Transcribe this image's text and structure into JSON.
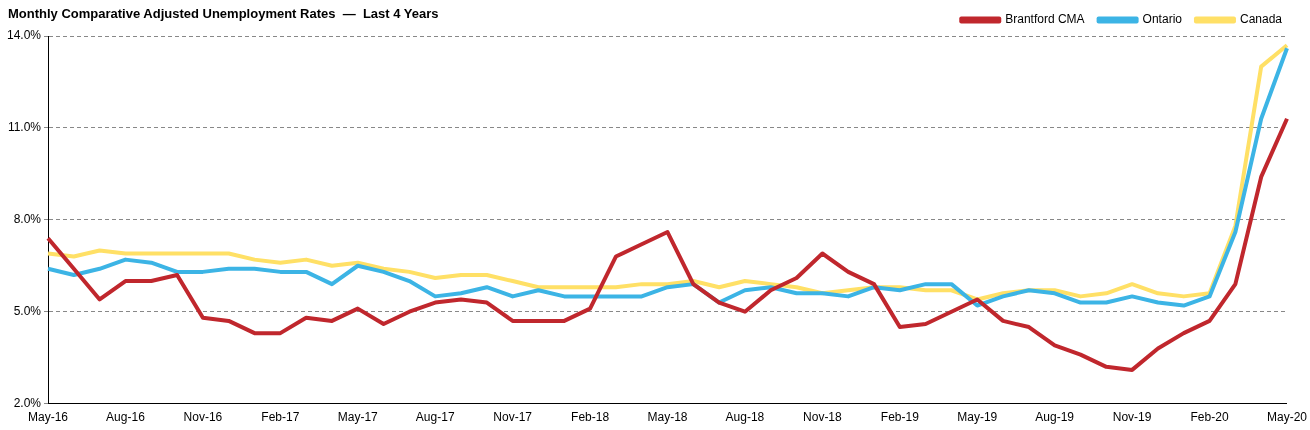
{
  "chart_data": {
    "type": "line",
    "title": "Monthly Comparative Adjusted Unemployment Rates  —  Last 4 Years",
    "categories": [
      "May-16",
      null,
      null,
      "Aug-16",
      null,
      null,
      "Nov-16",
      null,
      null,
      "Feb-17",
      null,
      null,
      "May-17",
      null,
      null,
      "Aug-17",
      null,
      null,
      "Nov-17",
      null,
      null,
      "Feb-18",
      null,
      null,
      "May-18",
      null,
      null,
      "Aug-18",
      null,
      null,
      "Nov-18",
      null,
      null,
      "Feb-19",
      null,
      null,
      "May-19",
      null,
      null,
      "Aug-19",
      null,
      null,
      "Nov-19",
      null,
      null,
      "Feb-20",
      null,
      null,
      "May-20"
    ],
    "series": [
      {
        "name": "Brantford CMA",
        "color": "#c0272d",
        "values": [
          7.4,
          6.4,
          5.4,
          6.0,
          6.0,
          6.2,
          4.8,
          4.7,
          4.3,
          4.3,
          4.8,
          4.7,
          5.1,
          4.6,
          5.0,
          5.3,
          5.4,
          5.3,
          4.7,
          4.7,
          4.7,
          5.1,
          6.8,
          7.2,
          7.6,
          5.9,
          5.3,
          5.0,
          5.7,
          6.1,
          6.9,
          6.3,
          5.9,
          4.5,
          4.6,
          5.0,
          5.4,
          4.7,
          4.5,
          3.9,
          3.6,
          3.2,
          3.1,
          3.8,
          4.3,
          4.7,
          5.9,
          9.4,
          11.3
        ]
      },
      {
        "name": "Ontario",
        "color": "#3cb4e5",
        "values": [
          6.4,
          6.2,
          6.4,
          6.7,
          6.6,
          6.3,
          6.3,
          6.4,
          6.4,
          6.3,
          6.3,
          5.9,
          6.5,
          6.3,
          6.0,
          5.5,
          5.6,
          5.8,
          5.5,
          5.7,
          5.5,
          5.5,
          5.5,
          5.5,
          5.8,
          5.9,
          5.3,
          5.7,
          5.8,
          5.6,
          5.6,
          5.5,
          5.8,
          5.7,
          5.9,
          5.9,
          5.2,
          5.5,
          5.7,
          5.6,
          5.3,
          5.3,
          5.5,
          5.3,
          5.2,
          5.5,
          7.6,
          11.3,
          13.6
        ]
      },
      {
        "name": "Canada",
        "color": "#ffe066",
        "values": [
          6.9,
          6.8,
          7.0,
          6.9,
          6.9,
          6.9,
          6.9,
          6.9,
          6.7,
          6.6,
          6.7,
          6.5,
          6.6,
          6.4,
          6.3,
          6.1,
          6.2,
          6.2,
          6.0,
          5.8,
          5.8,
          5.8,
          5.8,
          5.9,
          5.9,
          6.0,
          5.8,
          6.0,
          5.9,
          5.8,
          5.6,
          5.7,
          5.8,
          5.8,
          5.7,
          5.7,
          5.4,
          5.6,
          5.7,
          5.7,
          5.5,
          5.6,
          5.9,
          5.6,
          5.5,
          5.6,
          7.8,
          13.0,
          13.7
        ]
      }
    ],
    "ylim": [
      2,
      14
    ],
    "yticks": [
      {
        "value": 2,
        "label": "2.0%"
      },
      {
        "value": 5,
        "label": "5.0%"
      },
      {
        "value": 8,
        "label": "8.0%"
      },
      {
        "value": 11,
        "label": "11.0%"
      },
      {
        "value": 14,
        "label": "14.0%"
      }
    ],
    "grid": "y",
    "legend": "top right",
    "marker": "none",
    "line_style": "solid"
  }
}
